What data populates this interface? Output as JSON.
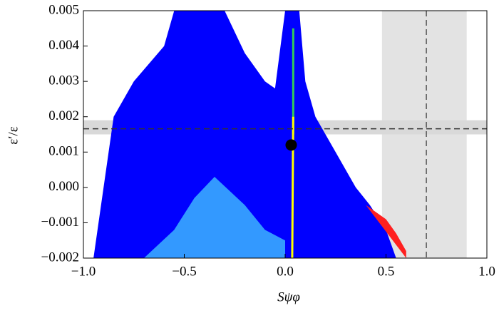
{
  "chart_data": {
    "type": "region",
    "xlabel": "Sψφ",
    "ylabel": "ε′/ε",
    "xlim": [
      -1.0,
      1.0
    ],
    "ylim": [
      -0.002,
      0.005
    ],
    "xticks": [
      {
        "value": -1.0,
        "label": "−1.0"
      },
      {
        "value": -0.5,
        "label": "−0.5"
      },
      {
        "value": 0,
        "label": "0.0"
      },
      {
        "value": 0.5,
        "label": "0.5"
      },
      {
        "value": 1.0,
        "label": "1.0"
      }
    ],
    "yticks": [
      {
        "value": -0.002,
        "label": "−0.002"
      },
      {
        "value": -0.001,
        "label": "−0.001"
      },
      {
        "value": 0,
        "label": "0.000"
      },
      {
        "value": 0.001,
        "label": "0.001"
      },
      {
        "value": 0.002,
        "label": "0.002"
      },
      {
        "value": 0.003,
        "label": "0.003"
      },
      {
        "value": 0.004,
        "label": "0.004"
      },
      {
        "value": 0.005,
        "label": "0.005"
      }
    ],
    "bands": [
      {
        "axis": "x",
        "range": [
          0.48,
          0.9
        ],
        "center": 0.7,
        "color": "#e3e3e3"
      },
      {
        "axis": "y",
        "range": [
          0.0015,
          0.0019
        ],
        "center": 0.00166,
        "color": "#d9d9d9"
      }
    ],
    "series": [
      {
        "kind": "area",
        "color": "#0000ff",
        "x": [
          -0.95,
          -0.9,
          -0.85,
          -0.75,
          -0.6,
          -0.55,
          -0.3,
          -0.2,
          -0.1,
          -0.05,
          0.0,
          0.07,
          0.1,
          0.15,
          0.25,
          0.35,
          0.42,
          0.5,
          0.55
        ],
        "y": [
          -0.002,
          0.0,
          0.002,
          0.003,
          0.004,
          0.005,
          0.005,
          0.0038,
          0.003,
          0.0028,
          0.005,
          0.005,
          0.003,
          0.002,
          0.001,
          0.0,
          -0.0005,
          -0.0012,
          -0.002
        ]
      },
      {
        "kind": "area",
        "color": "#3399ff",
        "x": [
          -0.7,
          -0.55,
          -0.45,
          -0.35,
          -0.2,
          -0.1,
          0.0,
          0.0
        ],
        "y": [
          -0.002,
          -0.0012,
          -0.0003,
          0.0003,
          -0.0005,
          -0.0012,
          -0.0015,
          -0.002
        ]
      },
      {
        "kind": "area",
        "color": "#ff2020",
        "x": [
          0.4,
          0.45,
          0.5,
          0.55,
          0.6,
          0.6
        ],
        "y": [
          -0.0005,
          -0.0007,
          -0.0009,
          -0.0013,
          -0.0018,
          -0.002
        ]
      },
      {
        "kind": "line",
        "color": "#33cc55",
        "x": [
          0.04,
          0.04
        ],
        "y": [
          0.0015,
          0.0045
        ]
      },
      {
        "kind": "line",
        "color": "#ffff00",
        "x": [
          0.035,
          0.04
        ],
        "y": [
          -0.002,
          0.002
        ]
      },
      {
        "kind": "point",
        "color": "#000000",
        "x": [
          0.03
        ],
        "y": [
          0.0012
        ]
      }
    ]
  }
}
